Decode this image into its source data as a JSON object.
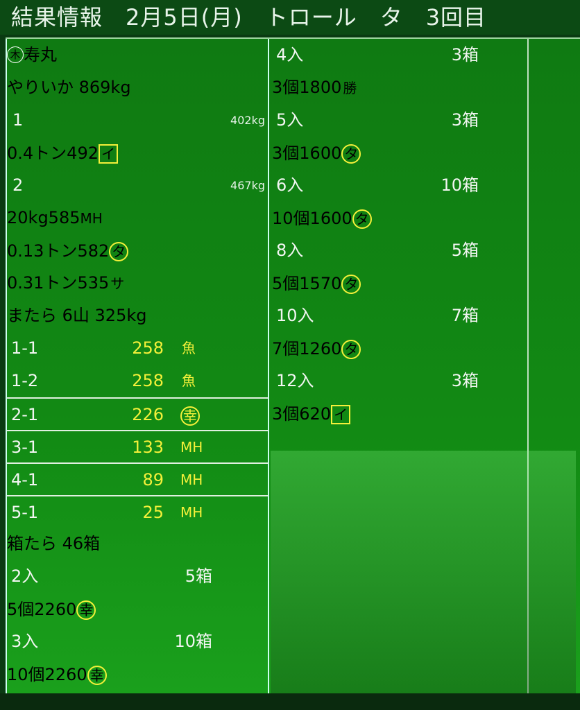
{
  "title": "結果情報　2月5日(月)　トロール　タ　3回目",
  "colors": {
    "header_blue": "#2a35d8",
    "category_orange": "#ff5a1a",
    "board_green": "#0f7a12",
    "price_yellow": "#f4f03a"
  },
  "left": [
    {
      "type": "header",
      "circle": "木",
      "label": "寿丸"
    },
    {
      "type": "category",
      "label": "やりいか 869kg"
    },
    {
      "type": "lot",
      "no": "1",
      "weight": "402kg"
    },
    {
      "type": "detail",
      "qty": "0.4トン",
      "price": "492",
      "mark": "イ",
      "mark_style": "box"
    },
    {
      "type": "lot",
      "no": "2",
      "weight": "467kg"
    },
    {
      "type": "detail",
      "qty": "20kg",
      "price": "585",
      "mark": "MH",
      "mark_style": "plain"
    },
    {
      "type": "detail",
      "qty": "0.13トン",
      "price": "582",
      "mark": "タ",
      "mark_style": "circle"
    },
    {
      "type": "detail",
      "qty": "0.31トン",
      "price": "535",
      "mark": "サ",
      "mark_style": "plain"
    },
    {
      "type": "category",
      "label": "またら 6山 325kg"
    },
    {
      "type": "lotd",
      "no": "1-1",
      "price": "258",
      "mark": "魚",
      "mark_style": "plain"
    },
    {
      "type": "lotd",
      "no": "1-2",
      "price": "258",
      "mark": "魚",
      "mark_style": "plain"
    },
    {
      "type": "lotd",
      "no": "2-1",
      "price": "226",
      "mark": "幸",
      "mark_style": "circle",
      "border": true
    },
    {
      "type": "lotd",
      "no": "3-1",
      "price": "133",
      "mark": "MH",
      "mark_style": "plain",
      "border": true
    },
    {
      "type": "lotd",
      "no": "4-1",
      "price": "89",
      "mark": "MH",
      "mark_style": "plain",
      "border": true
    },
    {
      "type": "lotd",
      "no": "5-1",
      "price": "25",
      "mark": "MH",
      "mark_style": "plain",
      "border": true
    },
    {
      "type": "category",
      "label": "箱たら 46箱"
    },
    {
      "type": "sub",
      "no": "2入",
      "boxes": "5箱"
    },
    {
      "type": "detail",
      "qty": "5個",
      "price": "2260",
      "mark": "幸",
      "mark_style": "circle"
    },
    {
      "type": "sub",
      "no": "3入",
      "boxes": "10箱"
    },
    {
      "type": "detail",
      "qty": "10個",
      "price": "2260",
      "mark": "幸",
      "mark_style": "circle"
    }
  ],
  "right": [
    {
      "type": "sub",
      "no": "4入",
      "boxes": "3箱"
    },
    {
      "type": "detail",
      "qty": "3個",
      "price": "1800",
      "mark": "勝",
      "mark_style": "hat"
    },
    {
      "type": "sub",
      "no": "5入",
      "boxes": "3箱"
    },
    {
      "type": "detail",
      "qty": "3個",
      "price": "1600",
      "mark": "タ",
      "mark_style": "circle"
    },
    {
      "type": "sub",
      "no": "6入",
      "boxes": "10箱"
    },
    {
      "type": "detail",
      "qty": "10個",
      "price": "1600",
      "mark": "タ",
      "mark_style": "circle"
    },
    {
      "type": "sub",
      "no": "8入",
      "boxes": "5箱"
    },
    {
      "type": "detail",
      "qty": "5個",
      "price": "1570",
      "mark": "タ",
      "mark_style": "circle"
    },
    {
      "type": "sub",
      "no": "10入",
      "boxes": "7箱"
    },
    {
      "type": "detail",
      "qty": "7個",
      "price": "1260",
      "mark": "タ",
      "mark_style": "circle"
    },
    {
      "type": "sub",
      "no": "12入",
      "boxes": "3箱"
    },
    {
      "type": "detail",
      "qty": "3個",
      "price": "620",
      "mark": "イ",
      "mark_style": "box"
    }
  ]
}
